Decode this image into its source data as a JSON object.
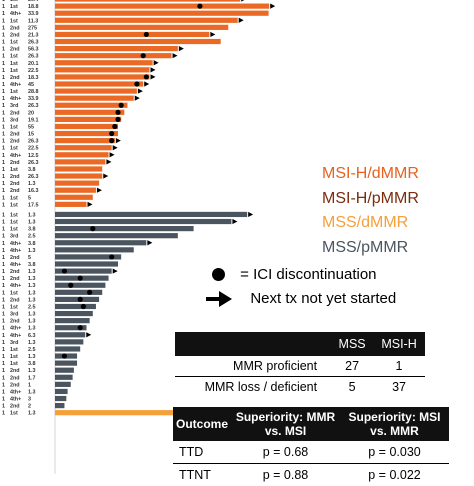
{
  "chart_data": {
    "type": "bar",
    "orientation": "horizontal",
    "x_scale_max": 42,
    "groups": [
      {
        "name": "MSI-H/dMMR",
        "color": "#ea6a25",
        "rows": [
          {
            "left": "1st",
            "value": "29.4",
            "bar": 29.4,
            "dot": null,
            "arrow": true
          },
          {
            "left": "1st",
            "value": "18.8",
            "bar": 34.0,
            "dot": 23.0,
            "arrow": true
          },
          {
            "left": "4th+",
            "value": "33.9",
            "bar": 33.9,
            "dot": null,
            "arrow": false
          },
          {
            "left": "1st",
            "value": "11.3",
            "bar": 29.0,
            "dot": null,
            "arrow": true
          },
          {
            "left": "2nd",
            "value": "275",
            "bar": 27.5,
            "dot": null,
            "arrow": false
          },
          {
            "left": "2nd",
            "value": "21.3",
            "bar": 24.5,
            "dot": 14.5,
            "arrow": true
          },
          {
            "left": "1st",
            "value": "26.3",
            "bar": 26.3,
            "dot": null,
            "arrow": false
          },
          {
            "left": "2nd",
            "value": "56.3",
            "bar": 19.5,
            "dot": null,
            "arrow": true
          },
          {
            "left": "1st",
            "value": "26.3",
            "bar": 18.5,
            "dot": 14.0,
            "arrow": true
          },
          {
            "left": "1st",
            "value": "20.1",
            "bar": 15.5,
            "dot": null,
            "arrow": true
          },
          {
            "left": "1st",
            "value": "22.5",
            "bar": 15.0,
            "dot": null,
            "arrow": true
          },
          {
            "left": "2nd",
            "value": "18.3",
            "bar": 15.0,
            "dot": 14.5,
            "arrow": true
          },
          {
            "left": "4th+",
            "value": "45",
            "bar": 14.0,
            "dot": 13.0,
            "arrow": true
          },
          {
            "left": "1st",
            "value": "28.8",
            "bar": 13.0,
            "dot": null,
            "arrow": true
          },
          {
            "left": "4th+",
            "value": "33.9",
            "bar": 12.5,
            "dot": null,
            "arrow": true
          },
          {
            "left": "3rd",
            "value": "26.3",
            "bar": 11.5,
            "dot": 10.5,
            "arrow": false
          },
          {
            "left": "2nd",
            "value": "20",
            "bar": 11.0,
            "dot": 10.0,
            "arrow": false
          },
          {
            "left": "3rd",
            "value": "19.1",
            "bar": 10.5,
            "dot": 10.0,
            "arrow": false
          },
          {
            "left": "1st",
            "value": "55",
            "bar": 10.0,
            "dot": 9.5,
            "arrow": false
          },
          {
            "left": "2nd",
            "value": "15",
            "bar": 10.0,
            "dot": 9.0,
            "arrow": false
          },
          {
            "left": "2nd",
            "value": "26.3",
            "bar": 9.5,
            "dot": 9.0,
            "arrow": true
          },
          {
            "left": "1st",
            "value": "22.5",
            "bar": 9.0,
            "dot": null,
            "arrow": true
          },
          {
            "left": "4th+",
            "value": "12.5",
            "bar": 8.5,
            "dot": null,
            "arrow": true
          },
          {
            "left": "2nd",
            "value": "26.3",
            "bar": 8.0,
            "dot": null,
            "arrow": true
          },
          {
            "left": "1st",
            "value": "3.8",
            "bar": 7.5,
            "dot": null,
            "arrow": false
          },
          {
            "left": "2nd",
            "value": "26.3",
            "bar": 7.5,
            "dot": null,
            "arrow": true
          },
          {
            "left": "2nd",
            "value": "1.3",
            "bar": 7.0,
            "dot": null,
            "arrow": false
          },
          {
            "left": "2nd",
            "value": "16.3",
            "bar": 6.5,
            "dot": null,
            "arrow": true
          },
          {
            "left": "1st",
            "value": "5",
            "bar": 6.0,
            "dot": null,
            "arrow": false
          },
          {
            "left": "1st",
            "value": "17.5",
            "bar": 5.0,
            "dot": null,
            "arrow": true
          }
        ]
      },
      {
        "name": "MSS/pMMR",
        "color": "#4b5560",
        "rows": [
          {
            "left": "1st",
            "value": "1.3",
            "bar": 30.5,
            "dot": null,
            "arrow": true
          },
          {
            "left": "1st",
            "value": "1.3",
            "bar": 28.0,
            "dot": null,
            "arrow": true
          },
          {
            "left": "1st",
            "value": "3.8",
            "bar": 22.0,
            "dot": 6.0,
            "arrow": false
          },
          {
            "left": "3rd",
            "value": "2.5",
            "bar": 19.5,
            "dot": null,
            "arrow": false
          },
          {
            "left": "4th+",
            "value": "3.8",
            "bar": 14.5,
            "dot": null,
            "arrow": true
          },
          {
            "left": "4th+",
            "value": "1.3",
            "bar": 12.5,
            "dot": null,
            "arrow": false
          },
          {
            "left": "2nd",
            "value": "5",
            "bar": 10.5,
            "dot": 9.0,
            "arrow": false
          },
          {
            "left": "4th+",
            "value": "3.8",
            "bar": 10.0,
            "dot": null,
            "arrow": false
          },
          {
            "left": "2nd",
            "value": "1.3",
            "bar": 9.0,
            "dot": 1.5,
            "arrow": true
          },
          {
            "left": "2nd",
            "value": "1.3",
            "bar": 8.5,
            "dot": 4.0,
            "arrow": false
          },
          {
            "left": "4th+",
            "value": "1.3",
            "bar": 8.0,
            "dot": 2.5,
            "arrow": false
          },
          {
            "left": "1st",
            "value": "1.3",
            "bar": 7.5,
            "dot": 5.5,
            "arrow": false
          },
          {
            "left": "2nd",
            "value": "1.3",
            "bar": 7.0,
            "dot": 4.0,
            "arrow": false
          },
          {
            "left": "1st",
            "value": "2.5",
            "bar": 6.5,
            "dot": 4.5,
            "arrow": false
          },
          {
            "left": "3rd",
            "value": "1.3",
            "bar": 6.0,
            "dot": null,
            "arrow": false
          },
          {
            "left": "2nd",
            "value": "1.3",
            "bar": 5.5,
            "dot": null,
            "arrow": false
          },
          {
            "left": "4th+",
            "value": "1.3",
            "bar": 5.0,
            "dot": 4.0,
            "arrow": false
          },
          {
            "left": "4th+",
            "value": "6.3",
            "bar": 4.8,
            "dot": null,
            "arrow": true
          },
          {
            "left": "3rd",
            "value": "1.3",
            "bar": 4.5,
            "dot": null,
            "arrow": false
          },
          {
            "left": "1st",
            "value": "2.5",
            "bar": 4.0,
            "dot": null,
            "arrow": false
          },
          {
            "left": "1st",
            "value": "1.3",
            "bar": 3.5,
            "dot": 1.5,
            "arrow": false
          },
          {
            "left": "1st",
            "value": "3.8",
            "bar": 3.5,
            "dot": null,
            "arrow": false
          },
          {
            "left": "2nd",
            "value": "1.3",
            "bar": 3.0,
            "dot": null,
            "arrow": false
          },
          {
            "left": "2nd",
            "value": "1.7",
            "bar": 2.8,
            "dot": null,
            "arrow": false
          },
          {
            "left": "2nd",
            "value": "1",
            "bar": 2.5,
            "dot": null,
            "arrow": false
          },
          {
            "left": "4th+",
            "value": "1.3",
            "bar": 2.0,
            "dot": null,
            "arrow": false
          },
          {
            "left": "4th+",
            "value": "3",
            "bar": 1.8,
            "dot": null,
            "arrow": false
          },
          {
            "left": "2nd",
            "value": "2",
            "bar": 1.5,
            "dot": null,
            "arrow": false
          }
        ]
      },
      {
        "name": "MSS/dMMR",
        "color": "#f5a03a",
        "rows": [
          {
            "left": "1st",
            "value": "1.3",
            "bar": 20.5,
            "dot": null,
            "arrow": true
          }
        ]
      }
    ],
    "legend": [
      {
        "label": "MSI-H/dMMR",
        "color": "#e8611d"
      },
      {
        "label": "MSI-H/pMMR",
        "color": "#7a2c0e"
      },
      {
        "label": "MSS/dMMR",
        "color": "#f5a03a"
      },
      {
        "label": "MSS/pMMR",
        "color": "#4b5560"
      }
    ],
    "legend_position": "right"
  },
  "key": {
    "dot_label": "= ICI discontinuation",
    "arrow_label": "Next tx not yet started"
  },
  "count_table": {
    "headers": [
      "",
      "MSS",
      "MSI-H"
    ],
    "rows": [
      {
        "label": "MMR proficient",
        "mss": "27",
        "msih": "1"
      },
      {
        "label": "MMR loss / deficient",
        "mss": "5",
        "msih": "37"
      }
    ]
  },
  "superiority_table": {
    "headers": [
      "Outcome",
      "Superiority: MMR vs. MSI",
      "Superiority: MSI vs. MMR"
    ],
    "rows": [
      {
        "outcome": "TTD",
        "a": "p = 0.68",
        "b": "p = 0.030"
      },
      {
        "outcome": "TTNT",
        "a": "p = 0.88",
        "b": "p = 0.022"
      }
    ]
  }
}
